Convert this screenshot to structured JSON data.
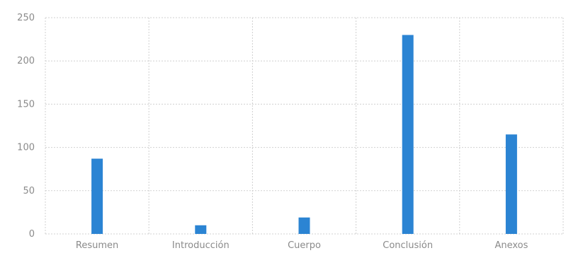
{
  "chart_data": {
    "type": "bar",
    "categories": [
      "Resumen",
      "Introducción",
      "Cuerpo",
      "Conclusión",
      "Anexos"
    ],
    "series": [
      {
        "values": [
          87,
          10,
          19,
          230,
          115
        ],
        "color": "#2b84d3"
      }
    ],
    "ylim": [
      0,
      250
    ],
    "yticks": [
      0,
      50,
      100,
      150,
      200,
      250
    ],
    "grid": true,
    "grid_style": "dotted",
    "grid_color": "#d0d0d0",
    "title": "",
    "xlabel": "",
    "ylabel": ""
  }
}
